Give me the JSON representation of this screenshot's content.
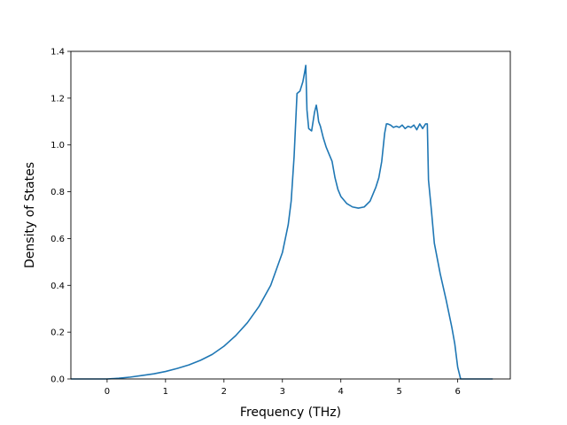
{
  "chart_data": {
    "type": "line",
    "title": "",
    "xlabel": "Frequency (THz)",
    "ylabel": "Density of States",
    "xlim": [
      -0.62,
      6.9
    ],
    "ylim": [
      0.0,
      1.4
    ],
    "xticks": [
      0,
      1,
      2,
      3,
      4,
      5,
      6
    ],
    "yticks": [
      0.0,
      0.2,
      0.4,
      0.6,
      0.8,
      1.0,
      1.2,
      1.4
    ],
    "xtick_labels": [
      "0",
      "1",
      "2",
      "3",
      "4",
      "5",
      "6"
    ],
    "ytick_labels": [
      "0.0",
      "0.2",
      "0.4",
      "0.6",
      "0.8",
      "1.0",
      "1.2",
      "1.4"
    ],
    "grid": false,
    "line_color": "#1f77b4",
    "series": [
      {
        "x": [
          -0.62,
          -0.3,
          0.0,
          0.2,
          0.4,
          0.6,
          0.8,
          1.0,
          1.2,
          1.4,
          1.6,
          1.8,
          2.0,
          2.2,
          2.4,
          2.6,
          2.8,
          3.0,
          3.1,
          3.15,
          3.2,
          3.25,
          3.3,
          3.35,
          3.38,
          3.4,
          3.42,
          3.45,
          3.5,
          3.55,
          3.58,
          3.6,
          3.62,
          3.65,
          3.7,
          3.75,
          3.8,
          3.85,
          3.9,
          3.95,
          4.0,
          4.1,
          4.2,
          4.3,
          4.4,
          4.5,
          4.6,
          4.65,
          4.7,
          4.75,
          4.78,
          4.8,
          4.85,
          4.9,
          4.95,
          5.0,
          5.05,
          5.1,
          5.15,
          5.2,
          5.25,
          5.3,
          5.35,
          5.4,
          5.45,
          5.48,
          5.5,
          5.55,
          5.6,
          5.7,
          5.8,
          5.9,
          5.95,
          6.0,
          6.05,
          6.1,
          6.4,
          6.6
        ],
        "y": [
          0.0,
          0.0,
          0.0,
          0.003,
          0.008,
          0.015,
          0.022,
          0.032,
          0.045,
          0.06,
          0.08,
          0.105,
          0.14,
          0.185,
          0.24,
          0.31,
          0.4,
          0.54,
          0.66,
          0.76,
          0.95,
          1.22,
          1.23,
          1.27,
          1.31,
          1.34,
          1.15,
          1.07,
          1.06,
          1.14,
          1.17,
          1.14,
          1.1,
          1.08,
          1.03,
          0.99,
          0.96,
          0.93,
          0.86,
          0.81,
          0.78,
          0.75,
          0.735,
          0.73,
          0.735,
          0.76,
          0.82,
          0.86,
          0.93,
          1.05,
          1.09,
          1.09,
          1.085,
          1.075,
          1.08,
          1.075,
          1.085,
          1.07,
          1.08,
          1.075,
          1.085,
          1.065,
          1.09,
          1.07,
          1.09,
          1.09,
          0.85,
          0.72,
          0.58,
          0.45,
          0.34,
          0.22,
          0.15,
          0.05,
          0.0,
          0.0,
          0.0,
          0.0
        ]
      }
    ]
  }
}
